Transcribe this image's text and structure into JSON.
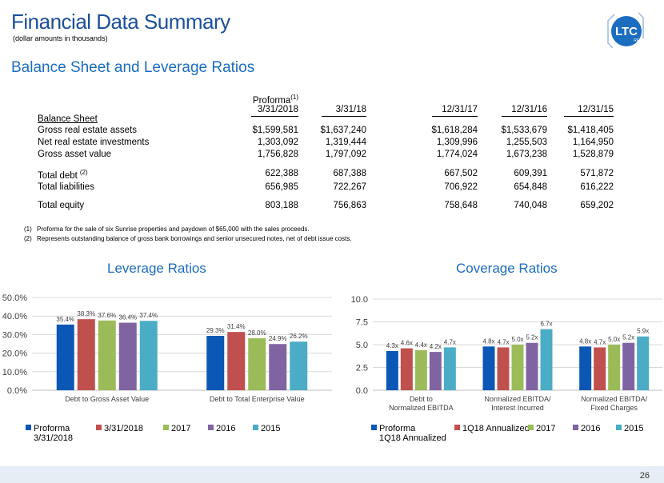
{
  "header": {
    "title": "Financial Data Summary",
    "subtitle": "(dollar amounts in thousands)",
    "logo_text": "LTC",
    "logo_sub": "REIT"
  },
  "section_title": "Balance Sheet and Leverage Ratios",
  "table": {
    "proforma_label": "Proforma",
    "proforma_note": "(1)",
    "columns": [
      "3/31/2018",
      "3/31/18",
      "12/31/17",
      "12/31/16",
      "12/31/15"
    ],
    "balance_sheet_label": "Balance Sheet",
    "rows": [
      {
        "label": "Gross real estate assets",
        "note": "",
        "values": [
          "$1,599,581",
          "$1,637,240",
          "$1,618,284",
          "$1,533,679",
          "$1,418,405"
        ]
      },
      {
        "label": "Net real estate investments",
        "note": "",
        "values": [
          "1,303,092",
          "1,319,444",
          "1,309,996",
          "1,255,503",
          "1,164,950"
        ]
      },
      {
        "label": "Gross asset value",
        "note": "",
        "values": [
          "1,756,828",
          "1,797,092",
          "1,774,024",
          "1,673,238",
          "1,528,879"
        ]
      },
      {
        "label": "Total debt",
        "note": "(2)",
        "values": [
          "622,388",
          "687,388",
          "667,502",
          "609,391",
          "571,872"
        ]
      },
      {
        "label": "Total liabilities",
        "note": "",
        "values": [
          "656,985",
          "722,267",
          "706,922",
          "654,848",
          "616,222"
        ]
      },
      {
        "label": "Total equity",
        "note": "",
        "values": [
          "803,188",
          "756,863",
          "758,648",
          "740,048",
          "659,202"
        ]
      }
    ]
  },
  "footnotes": [
    {
      "num": "(1)",
      "text": "Proforma for the sale of six Sunrise properties and paydown of $65,000 with the sales proceeds."
    },
    {
      "num": "(2)",
      "text": "Represents outstanding balance of gross bank borrowings and senior unsecured notes, net of debt issue costs."
    }
  ],
  "colors": [
    "#0b57b5",
    "#c0504d",
    "#9bbb59",
    "#8064a2",
    "#4bacc6"
  ],
  "chart_data": [
    {
      "type": "bar",
      "title": "Leverage Ratios",
      "categories": [
        "Debt to Gross Asset Value",
        "Debt to Total Enterprise Value"
      ],
      "series": [
        {
          "name": "Proforma 3/31/2018",
          "values": [
            35.4,
            29.3
          ],
          "labels": [
            "35.4%",
            "29.3%"
          ]
        },
        {
          "name": "3/31/2018",
          "values": [
            38.3,
            31.4
          ],
          "labels": [
            "38.3%",
            "31.4%"
          ]
        },
        {
          "name": "2017",
          "values": [
            37.6,
            28.0
          ],
          "labels": [
            "37.6%",
            "28.0%"
          ]
        },
        {
          "name": "2016",
          "values": [
            36.4,
            24.9
          ],
          "labels": [
            "36.4%",
            "24.9%"
          ]
        },
        {
          "name": "2015",
          "values": [
            37.4,
            26.2
          ],
          "labels": [
            "37.4%",
            "26.2%"
          ]
        }
      ],
      "ylim": [
        0,
        50
      ],
      "yticks": [
        0,
        10,
        20,
        30,
        40,
        50
      ],
      "ytick_labels": [
        "0.0%",
        "10.0%",
        "20.0%",
        "30.0%",
        "40.0%",
        "50.0%"
      ],
      "legend_labels": [
        [
          "Proforma",
          "3/31/2018"
        ],
        [
          "3/31/2018"
        ],
        [
          "2017"
        ],
        [
          "2016"
        ],
        [
          "2015"
        ]
      ],
      "grid": true,
      "legend": "bottom"
    },
    {
      "type": "bar",
      "title": "Coverage Ratios",
      "categories": [
        [
          "Debt to",
          "Normalized EBITDA"
        ],
        [
          "Normalized EBITDA/",
          "Interest Incurred"
        ],
        [
          "Normalized EBITDA/",
          "Fixed Charges"
        ]
      ],
      "series": [
        {
          "name": "Proforma 1Q18 Annualized",
          "values": [
            4.3,
            4.8,
            4.8
          ],
          "labels": [
            "4.3x",
            "4.8x",
            "4.8x"
          ]
        },
        {
          "name": "1Q18 Annualized",
          "values": [
            4.6,
            4.7,
            4.7
          ],
          "labels": [
            "4.6x",
            "4.7x",
            "4.7x"
          ]
        },
        {
          "name": "2017",
          "values": [
            4.4,
            5.0,
            5.0
          ],
          "labels": [
            "4.4x",
            "5.0x",
            "5.0x"
          ]
        },
        {
          "name": "2016",
          "values": [
            4.2,
            5.2,
            5.2
          ],
          "labels": [
            "4.2x",
            "5.2x",
            "5.2x"
          ]
        },
        {
          "name": "2015",
          "values": [
            4.7,
            6.7,
            5.9
          ],
          "labels": [
            "4.7x",
            "6.7x",
            "5.9x"
          ]
        }
      ],
      "ylim": [
        0,
        10
      ],
      "yticks": [
        0,
        2.5,
        5,
        7.5,
        10
      ],
      "ytick_labels": [
        "0.0",
        "2.5",
        "5.0",
        "7.5",
        "10.0"
      ],
      "legend_labels": [
        [
          "Proforma",
          "1Q18 Annualized"
        ],
        [
          "1Q18 Annualized"
        ],
        [
          "2017"
        ],
        [
          "2016"
        ],
        [
          "2015"
        ]
      ],
      "grid": true,
      "legend": "bottom"
    }
  ],
  "page_number": "26"
}
